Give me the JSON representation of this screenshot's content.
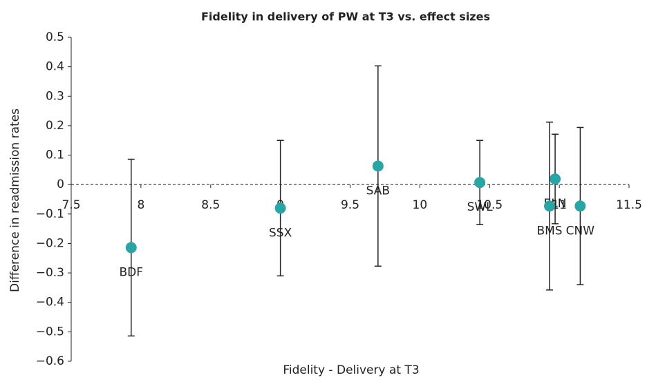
{
  "chart_data": {
    "type": "scatter",
    "title": "Fidelity in delivery of PW at T3 vs. effect sizes",
    "x_label": "Fidelity - Delivery at T3",
    "y_label": "Difference in readmission rates",
    "labels": [
      "BDF",
      "SSX",
      "SAB",
      "SWL",
      "ELN",
      "BMS",
      "CNW"
    ],
    "x": [
      7.93,
      9.0,
      9.7,
      10.43,
      10.97,
      10.93,
      11.15
    ],
    "values": [
      -0.214,
      -0.08,
      0.063,
      0.007,
      0.019,
      -0.073,
      -0.073
    ],
    "errors": [
      0.3,
      0.23,
      0.34,
      0.143,
      0.152,
      0.285,
      0.267
    ],
    "color": "#2aa5a5",
    "xlim": [
      7.5,
      11.5
    ],
    "xticks": [
      7.5,
      8,
      8.5,
      9,
      9.5,
      10,
      10.5,
      11,
      11.5
    ],
    "ylim": [
      -0.6,
      0.5
    ],
    "yticks": [
      {
        "value": -0.6,
        "label": "−0.6"
      },
      {
        "value": -0.5,
        "label": "−0.5"
      },
      {
        "value": -0.4,
        "label": "−0.4"
      },
      {
        "value": -0.3,
        "label": "−0.3"
      },
      {
        "value": -0.2,
        "label": "−0.2"
      },
      {
        "value": -0.1,
        "label": "−0.1"
      },
      0,
      0.1,
      0.2,
      0.3,
      0.4,
      0.5
    ]
  }
}
